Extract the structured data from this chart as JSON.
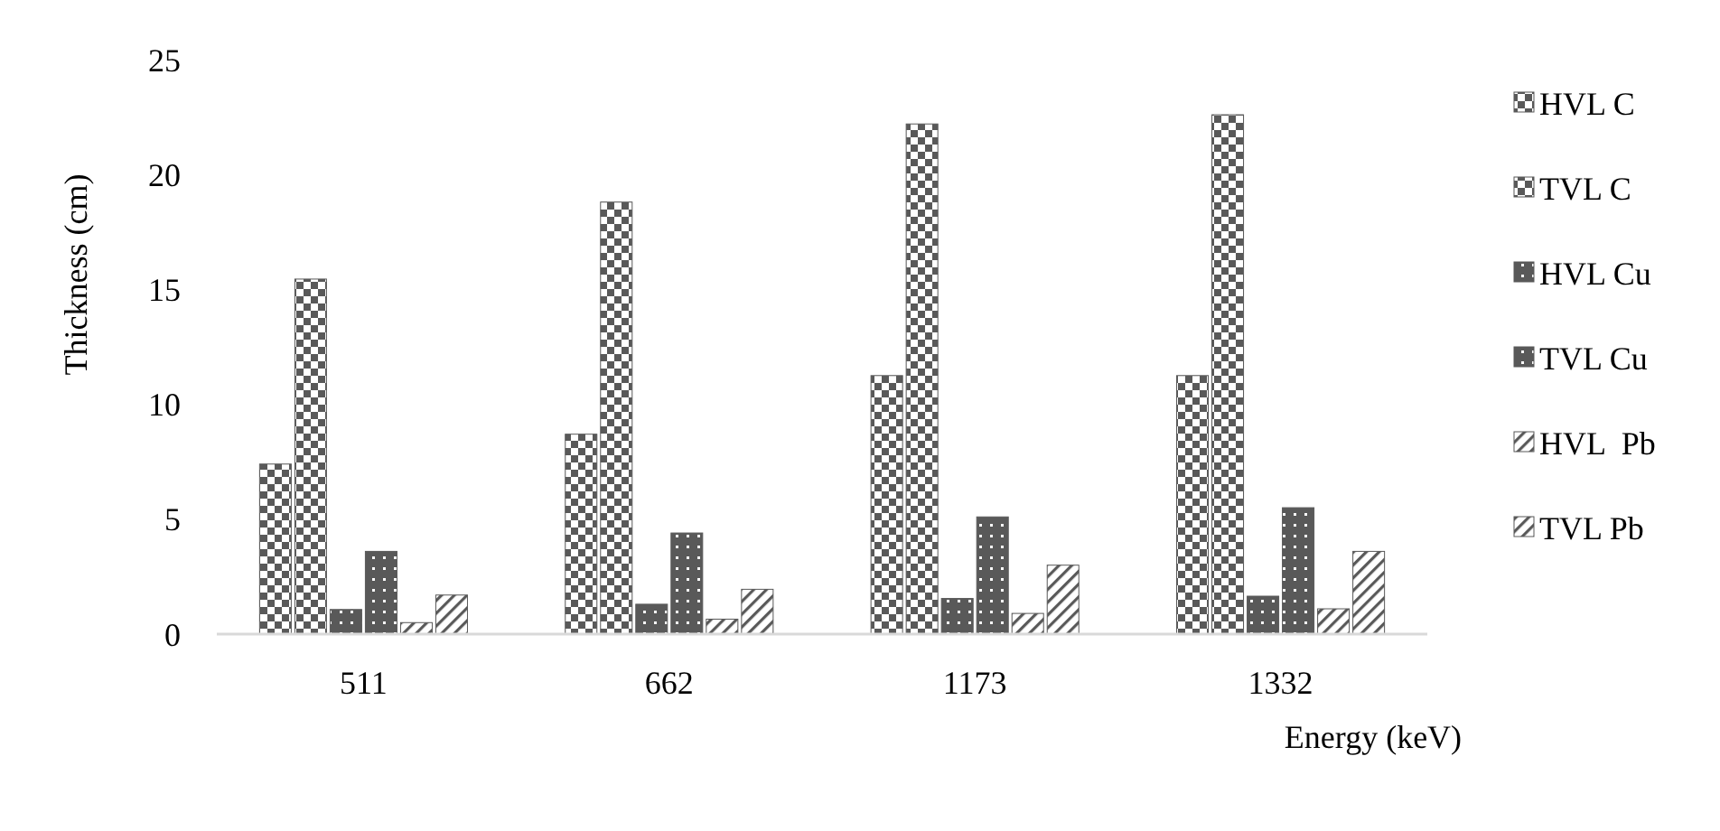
{
  "chart_data": {
    "type": "bar",
    "xlabel": "Energy (keV)",
    "ylabel": "Thickness (cm)",
    "categories": [
      "511",
      "662",
      "1173",
      "1332"
    ],
    "ylim": [
      0,
      25
    ],
    "yticks": [
      0,
      5,
      10,
      15,
      20,
      25
    ],
    "grid": false,
    "legend": "right",
    "series": [
      {
        "name": "HVL C",
        "color": "#595959",
        "values": [
          7.4,
          8.7,
          11.25,
          11.25
        ]
      },
      {
        "name": "TVL C",
        "color": "#595959",
        "values": [
          15.45,
          18.8,
          22.2,
          22.6
        ]
      },
      {
        "name": "HVL Cu",
        "color": "#595959",
        "values": [
          1.07,
          1.3,
          1.55,
          1.65
        ]
      },
      {
        "name": "TVL Cu",
        "color": "#595959",
        "values": [
          3.6,
          4.4,
          5.1,
          5.5
        ]
      },
      {
        "name": "HVL  Pb",
        "color": "#595959",
        "values": [
          0.5,
          0.65,
          0.9,
          1.1
        ]
      },
      {
        "name": "TVL Pb",
        "color": "#595959",
        "values": [
          1.7,
          1.95,
          3.0,
          3.6
        ]
      }
    ]
  }
}
